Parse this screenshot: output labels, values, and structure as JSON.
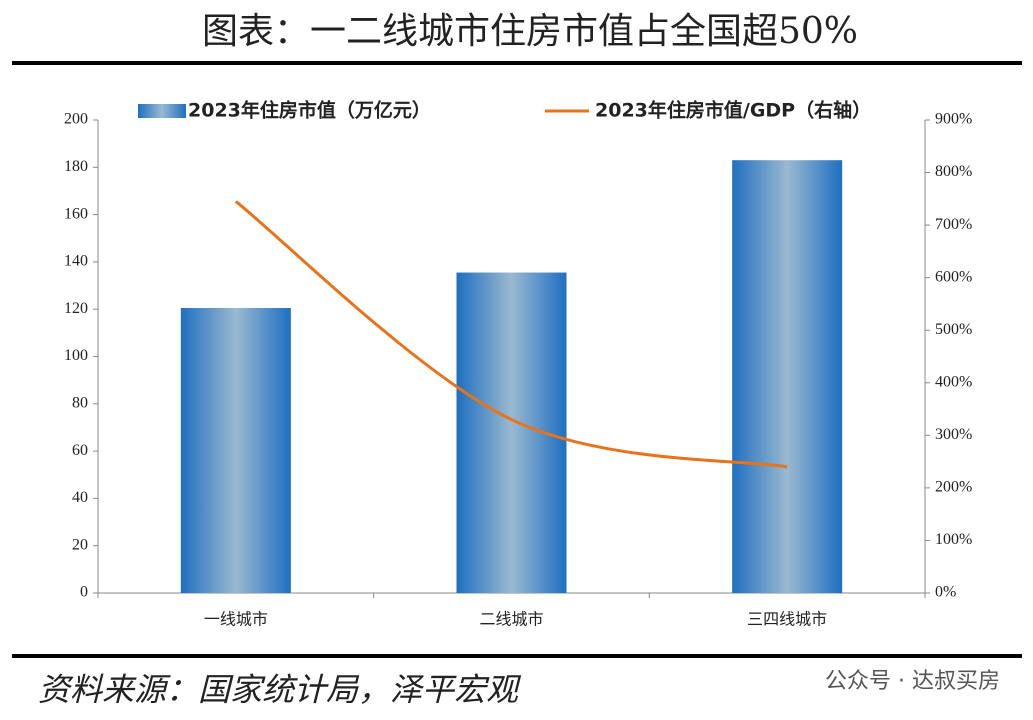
{
  "chart_data": {
    "type": "bar_line",
    "title": "图表：一二线城市住房市值占全国超50%",
    "source": "资料来源：国家统计局，泽平宏观",
    "watermark": "公众号 · 达叔买房",
    "categories": [
      "一线城市",
      "二线城市",
      "三四线城市"
    ],
    "series": [
      {
        "name": "2023年住房市值（万亿元）",
        "type": "bar",
        "color": "#1f6fc1",
        "values": [
          120.5,
          135.5,
          183
        ]
      },
      {
        "name": "2023年住房市值/GDP（右轴）",
        "type": "line",
        "color": "#e8731a",
        "axis": "y2",
        "values": [
          745,
          330,
          240
        ]
      }
    ],
    "ylim": [
      0,
      200
    ],
    "yticks": [
      0,
      20,
      40,
      60,
      80,
      100,
      120,
      140,
      160,
      180,
      200
    ],
    "y2lim": [
      0,
      900
    ],
    "y2ticks": [
      {
        "value": 0,
        "label": "0%"
      },
      {
        "value": 100,
        "label": "100%"
      },
      {
        "value": 200,
        "label": "200%"
      },
      {
        "value": 300,
        "label": "300%"
      },
      {
        "value": 400,
        "label": "400%"
      },
      {
        "value": 500,
        "label": "500%"
      },
      {
        "value": 600,
        "label": "600%"
      },
      {
        "value": 700,
        "label": "700%"
      },
      {
        "value": 800,
        "label": "800%"
      },
      {
        "value": 900,
        "label": "900%"
      }
    ]
  }
}
